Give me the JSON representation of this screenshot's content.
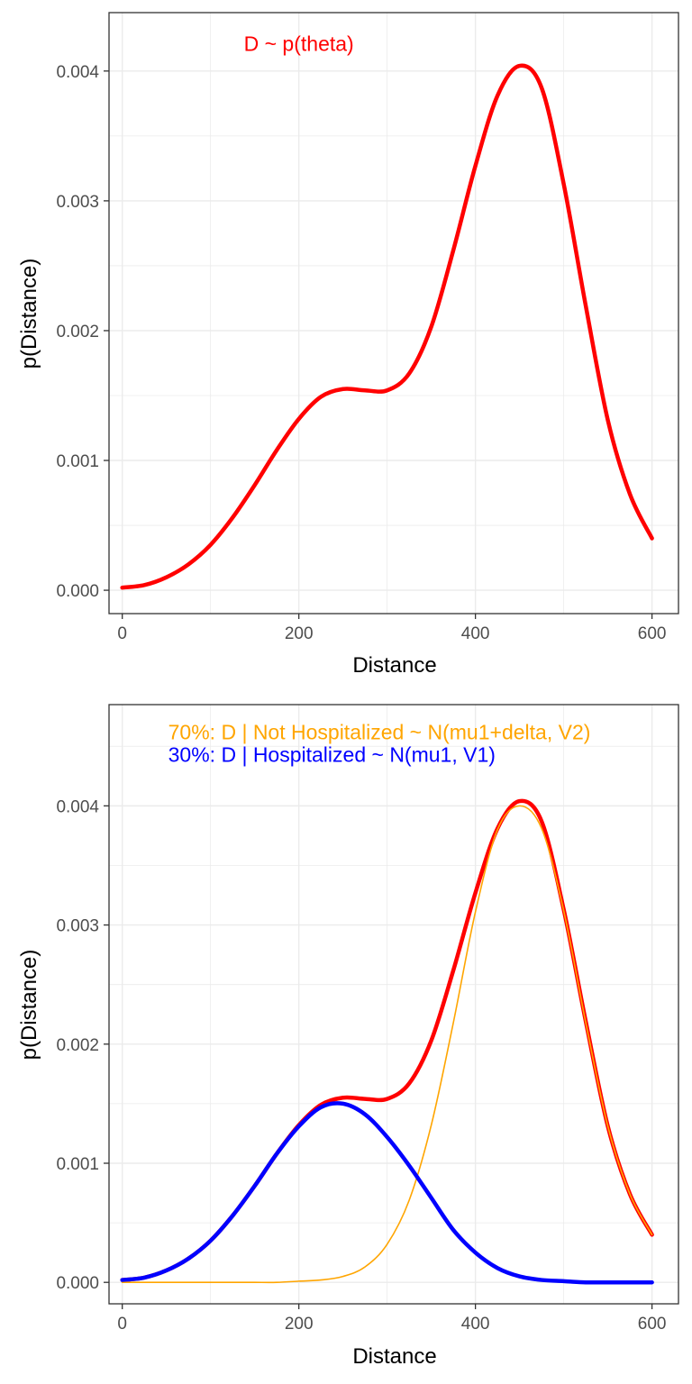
{
  "colors": {
    "mixture": "#ff0000",
    "not_hospitalized": "#ffa500",
    "hospitalized": "#0000ff",
    "grid": "#ebebeb",
    "panel_border": "#333333"
  },
  "chart_data": [
    {
      "type": "line",
      "title": "",
      "xlabel": "Distance",
      "ylabel": "p(Distance)",
      "xlim": [
        -15,
        630
      ],
      "ylim": [
        -0.00018,
        0.00445
      ],
      "xticks": [
        0,
        200,
        400,
        600
      ],
      "xtick_labels": [
        "0",
        "200",
        "400",
        "600"
      ],
      "yticks": [
        0,
        0.001,
        0.002,
        0.003,
        0.004
      ],
      "ytick_labels": [
        "0.000",
        "0.001",
        "0.002",
        "0.003",
        "0.004"
      ],
      "grid": true,
      "annotations": [
        {
          "text": "D ~ p(theta)",
          "color": "#ff0000",
          "x": 200,
          "y": 0.00421
        }
      ],
      "series": [
        {
          "color": "#ff0000",
          "x": [
            0,
            25,
            50,
            75,
            100,
            125,
            150,
            175,
            200,
            225,
            250,
            275,
            300,
            325,
            350,
            375,
            400,
            425,
            450,
            475,
            500,
            525,
            550,
            575,
            600
          ],
          "y": [
            2e-05,
            4e-05,
            0.0001,
            0.0002,
            0.00035,
            0.00056,
            0.00081,
            0.00108,
            0.00132,
            0.00149,
            0.00155,
            0.00154,
            0.00154,
            0.00167,
            0.00203,
            0.00262,
            0.00327,
            0.00381,
            0.00404,
            0.00387,
            0.00313,
            0.00219,
            0.00131,
            0.00074,
            0.0004
          ]
        }
      ]
    },
    {
      "type": "line",
      "title": "",
      "xlabel": "Distance",
      "ylabel": "p(Distance)",
      "xlim": [
        -15,
        630
      ],
      "ylim": [
        -0.00018,
        0.00485
      ],
      "xticks": [
        0,
        200,
        400,
        600
      ],
      "xtick_labels": [
        "0",
        "200",
        "400",
        "600"
      ],
      "yticks": [
        0,
        0.001,
        0.002,
        0.003,
        0.004
      ],
      "ytick_labels": [
        "0.000",
        "0.001",
        "0.002",
        "0.003",
        "0.004"
      ],
      "grid": true,
      "annotations": [
        {
          "text": "70%: D | Not Hospitalized ~ N(mu1+delta, V2)",
          "color": "#ffa500",
          "x": 52,
          "y": 0.00462
        },
        {
          "text": "30%: D | Hospitalized ~ N(mu1, V1)",
          "color": "#0000ff",
          "x": 52,
          "y": 0.00443
        }
      ],
      "series": [
        {
          "color": "#ff0000",
          "x": [
            0,
            25,
            50,
            75,
            100,
            125,
            150,
            175,
            200,
            225,
            250,
            275,
            300,
            325,
            350,
            375,
            400,
            425,
            450,
            475,
            500,
            525,
            550,
            575,
            600
          ],
          "y": [
            2e-05,
            4e-05,
            0.0001,
            0.0002,
            0.00035,
            0.00056,
            0.00081,
            0.00108,
            0.00132,
            0.00149,
            0.00155,
            0.00154,
            0.00154,
            0.00167,
            0.00203,
            0.00262,
            0.00327,
            0.00381,
            0.00404,
            0.00387,
            0.00313,
            0.00219,
            0.00131,
            0.00074,
            0.0004
          ]
        },
        {
          "color": "#ffa500",
          "x": [
            0,
            25,
            50,
            75,
            100,
            125,
            150,
            175,
            200,
            225,
            250,
            275,
            300,
            325,
            350,
            375,
            400,
            425,
            450,
            475,
            500,
            525,
            550,
            575,
            600
          ],
          "y": [
            0,
            0,
            0,
            0,
            0,
            0,
            0,
            0,
            1e-05,
            2e-05,
            5e-05,
            0.00013,
            0.00032,
            0.00069,
            0.00132,
            0.00218,
            0.00311,
            0.0038,
            0.004,
            0.00381,
            0.00312,
            0.00218,
            0.00131,
            0.00074,
            0.0004
          ]
        },
        {
          "color": "#0000ff",
          "x": [
            0,
            25,
            50,
            75,
            100,
            125,
            150,
            175,
            200,
            225,
            250,
            275,
            300,
            325,
            350,
            375,
            400,
            425,
            450,
            475,
            500,
            525,
            550,
            575,
            600
          ],
          "y": [
            2e-05,
            4e-05,
            0.0001,
            0.0002,
            0.00035,
            0.00056,
            0.00081,
            0.00108,
            0.00131,
            0.00147,
            0.0015,
            0.00141,
            0.00122,
            0.00098,
            0.00071,
            0.00044,
            0.00025,
            0.00012,
            5e-05,
            2e-05,
            1e-05,
            0,
            0,
            0,
            0
          ]
        }
      ]
    }
  ]
}
